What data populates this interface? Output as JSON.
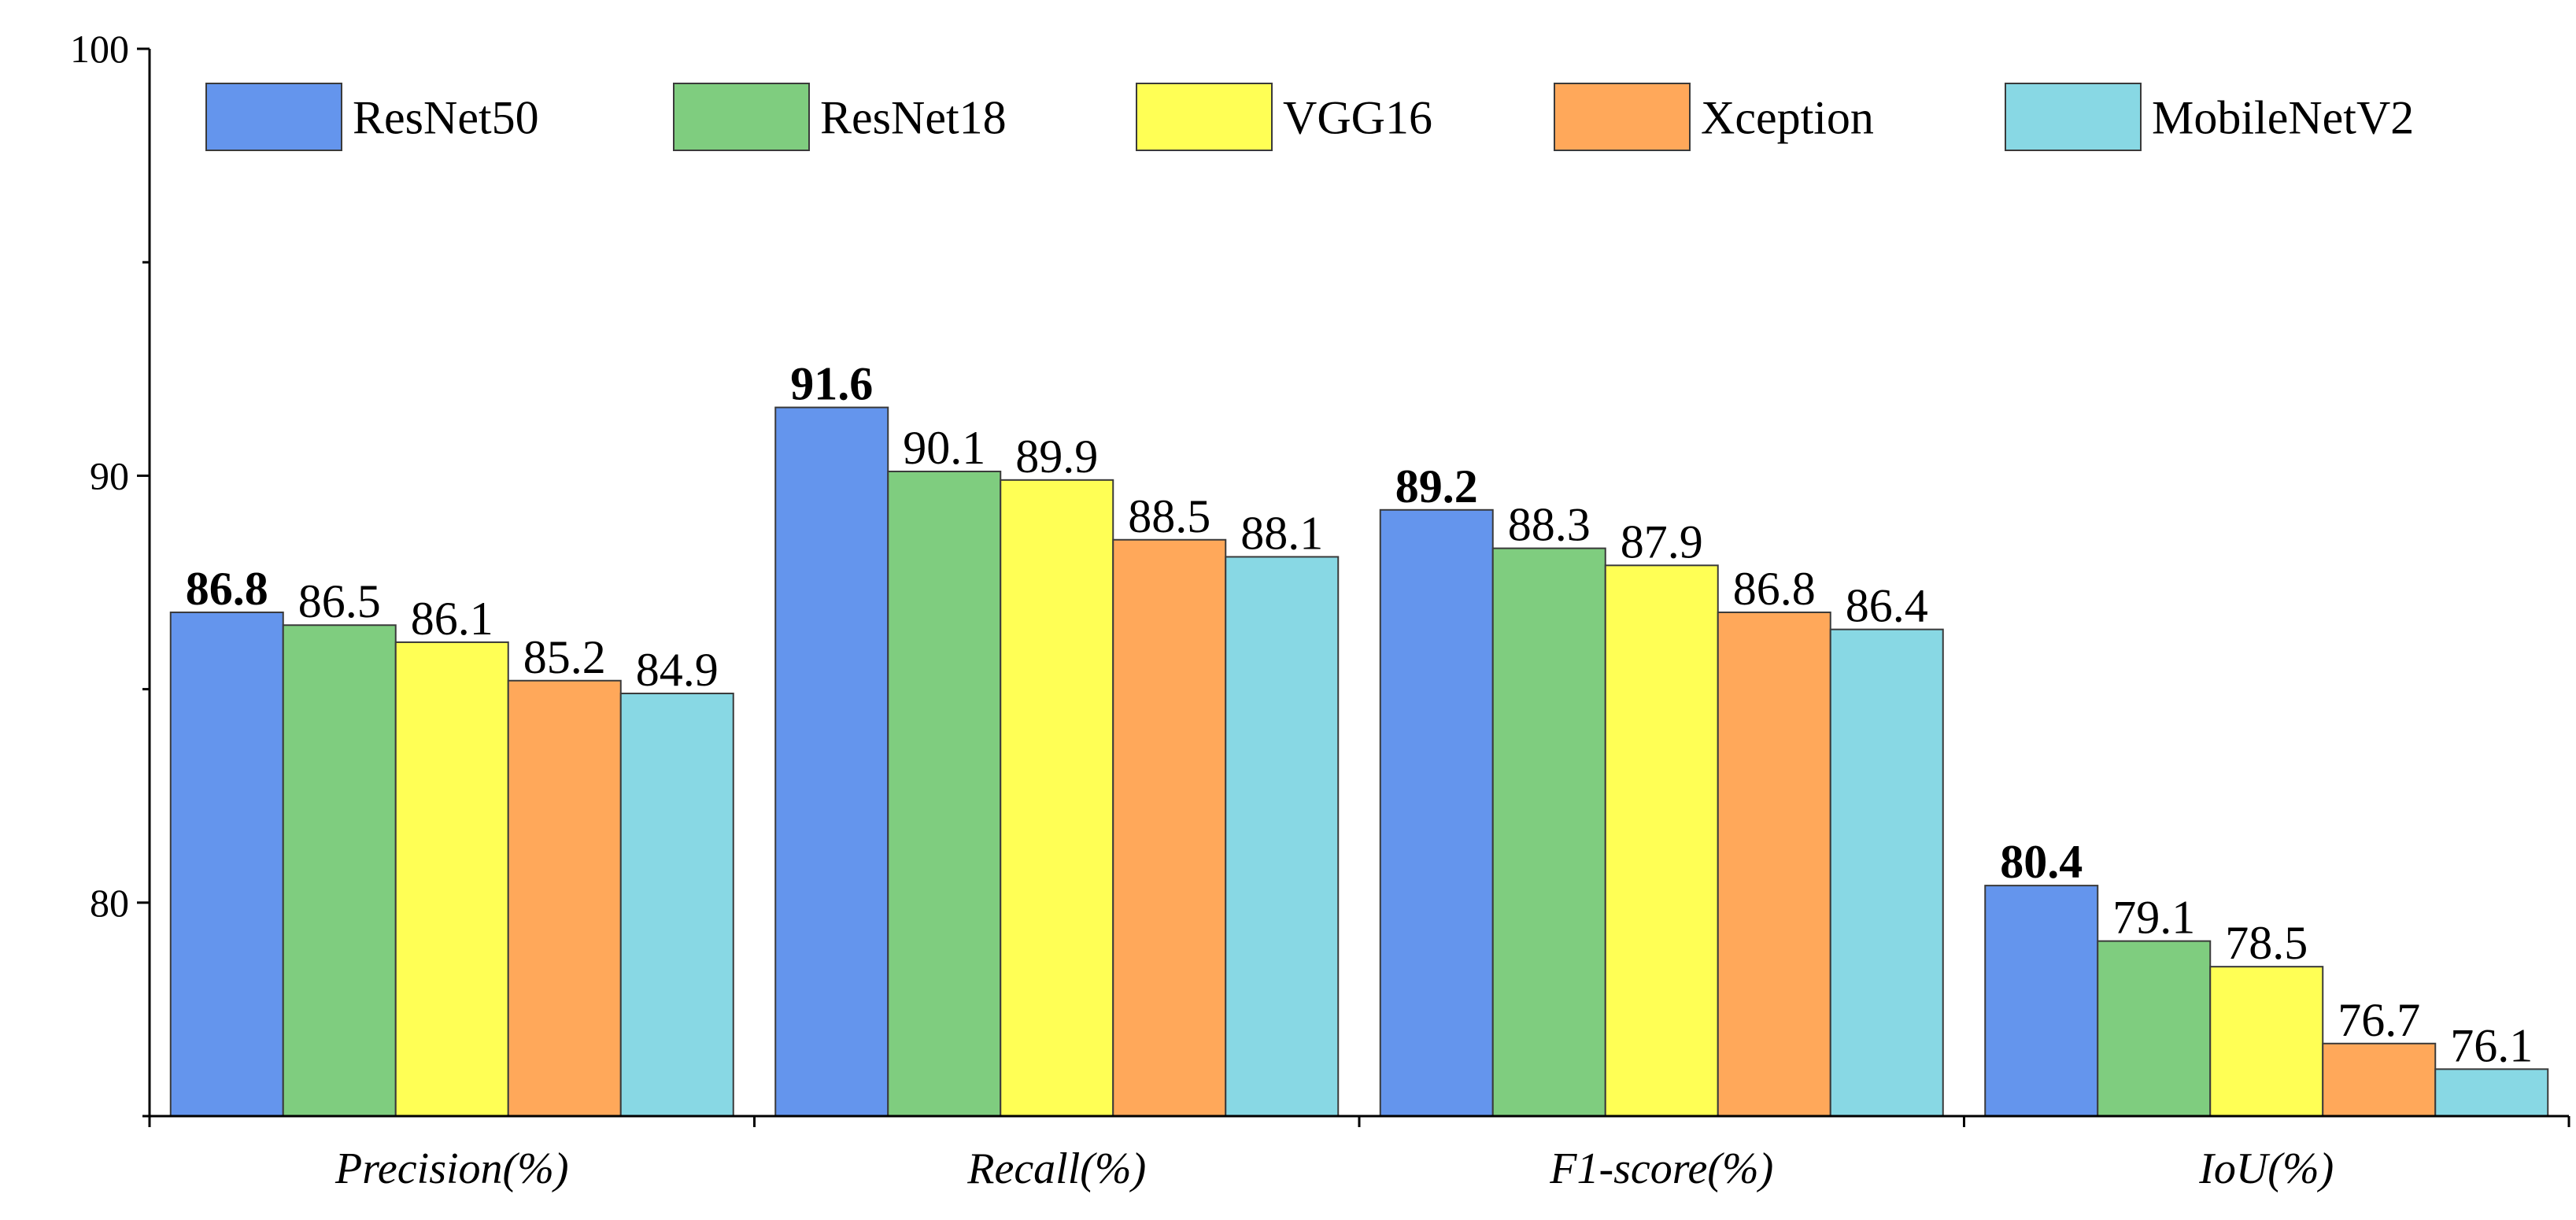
{
  "chart_data": {
    "type": "bar",
    "title": "",
    "xlabel": "",
    "ylabel": "",
    "ylim": [
      75,
      100
    ],
    "yticks": [
      80,
      90,
      100
    ],
    "grid": false,
    "legend_position": "top",
    "categories": [
      "Precision(%)",
      "Recall(%)",
      "F1-score(%)",
      "IoU(%)"
    ],
    "series": [
      {
        "name": "ResNet50",
        "color": "#6495ED",
        "values": [
          86.8,
          91.6,
          89.2,
          80.4
        ],
        "labels": [
          "86.8",
          "91.6",
          "89.2",
          "80.4"
        ],
        "bold_labels": true
      },
      {
        "name": "ResNet18",
        "color": "#7FCD7F",
        "values": [
          86.5,
          90.1,
          88.3,
          79.1
        ],
        "labels": [
          "86.5",
          "90.1",
          "88.3",
          "79.1"
        ],
        "bold_labels": false
      },
      {
        "name": "VGG16",
        "color": "#FFFF55",
        "values": [
          86.1,
          89.9,
          87.9,
          78.5
        ],
        "labels": [
          "86.1",
          "89.9",
          "87.9",
          "78.5"
        ],
        "bold_labels": false
      },
      {
        "name": "Xception",
        "color": "#FFA85A",
        "values": [
          85.2,
          88.5,
          86.8,
          76.7
        ],
        "labels": [
          "85.2",
          "88.5",
          "86.8",
          "76.7"
        ],
        "bold_labels": false
      },
      {
        "name": "MobileNetV2",
        "color": "#88D8E4",
        "values": [
          84.9,
          88.1,
          86.4,
          76.1
        ],
        "labels": [
          "84.9",
          "88.1",
          "86.4",
          "76.1"
        ],
        "bold_labels": false
      }
    ]
  }
}
